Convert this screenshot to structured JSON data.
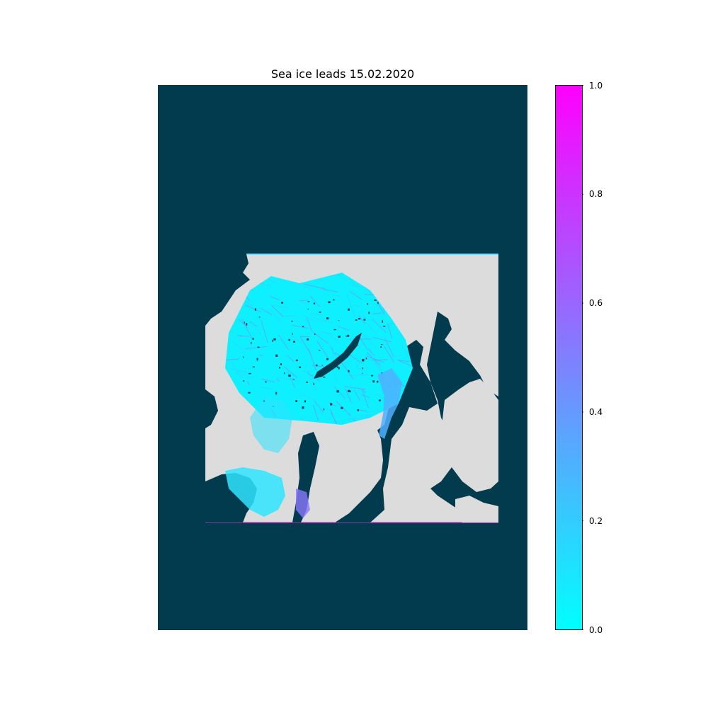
{
  "figure": {
    "title": "Sea ice leads 15.02.2020"
  },
  "colors": {
    "ocean": "#023a4e",
    "land_and_ice": "#dcdcdc",
    "cmap_low": "#00ffff",
    "cmap_high": "#ff00ff"
  },
  "colorbar": {
    "colormap": "cool",
    "range": [
      0.0,
      1.0
    ],
    "ticks": [
      "0.0",
      "0.2",
      "0.4",
      "0.6",
      "0.8",
      "1.0"
    ]
  }
}
